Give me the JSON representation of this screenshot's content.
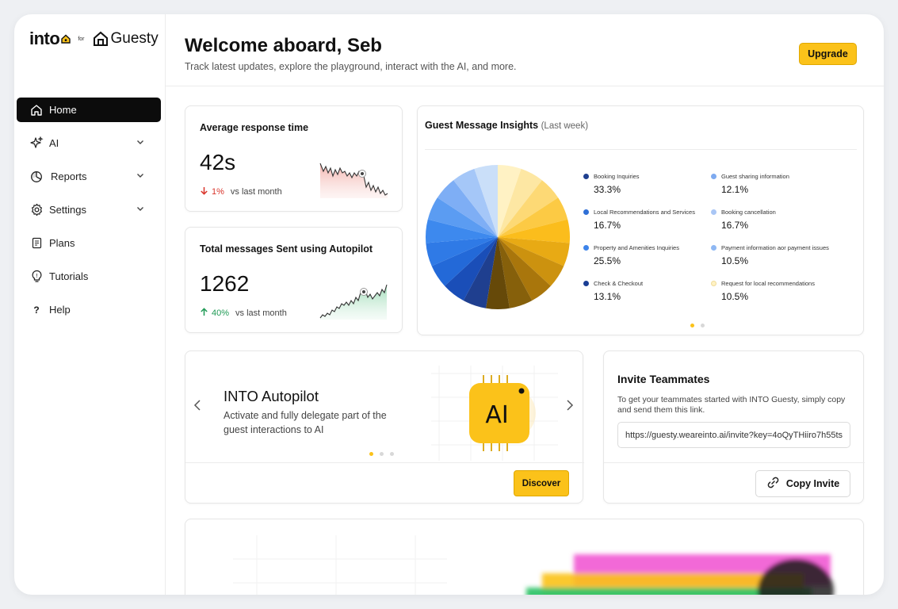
{
  "logo": {
    "brand": "into",
    "for": "for",
    "partner": "Guesty"
  },
  "nav": {
    "items": [
      {
        "label": "Home",
        "icon": "home-icon",
        "active": true,
        "expandable": false
      },
      {
        "label": "AI",
        "icon": "sparkles-icon",
        "active": false,
        "expandable": true
      },
      {
        "label": "Reports",
        "icon": "pie-chart-icon",
        "active": false,
        "expandable": true
      },
      {
        "label": "Settings",
        "icon": "gear-icon",
        "active": false,
        "expandable": true
      },
      {
        "label": "Plans",
        "icon": "clipboard-icon",
        "active": false,
        "expandable": false
      },
      {
        "label": "Tutorials",
        "icon": "lightbulb-icon",
        "active": false,
        "expandable": false
      },
      {
        "label": "Help",
        "icon": "question-icon",
        "active": false,
        "expandable": false
      }
    ]
  },
  "header": {
    "title": "Welcome aboard, Seb",
    "subtitle": "Track latest updates, explore the playground, interact with the AI, and more.",
    "upgrade_label": "Upgrade"
  },
  "stats": {
    "response": {
      "title": "Average response time",
      "value": "42s",
      "delta": "1%",
      "delta_text": "vs last month",
      "trend": "down"
    },
    "messages": {
      "title": "Total messages Sent using Autopilot",
      "value": "1262",
      "delta": "40%",
      "delta_text": "vs last month",
      "trend": "up"
    }
  },
  "insights": {
    "title": "Guest Message Insights",
    "period": "(Last week)",
    "legend": [
      {
        "label": "Booking Inquiries",
        "value": "33.3%",
        "color": "#1f3f8f"
      },
      {
        "label": "Guest sharing information",
        "value": "12.1%",
        "color": "#7eaaf0"
      },
      {
        "label": "Local Recommendations and Services",
        "value": "16.7%",
        "color": "#2f6fd6"
      },
      {
        "label": "Booking cancellation",
        "value": "16.7%",
        "color": "#a9c6f5"
      },
      {
        "label": "Property and Amenities Inquiries",
        "value": "25.5%",
        "color": "#3d84ea"
      },
      {
        "label": "Payment information aor payment issues",
        "value": "10.5%",
        "color": "#8fb8f3"
      },
      {
        "label": "Check & Checkout",
        "value": "13.1%",
        "color": "#1a3e94"
      },
      {
        "label": "Request for local recommendations",
        "value": "10.5%",
        "color": "#fff2c4"
      }
    ]
  },
  "chart_data": {
    "type": "pie",
    "title": "Guest Message Insights",
    "categories": [
      "Booking Inquiries",
      "Guest sharing information",
      "Local Recommendations and Services",
      "Booking cancellation",
      "Property and Amenities Inquiries",
      "Payment information aor payment issues",
      "Check & Checkout",
      "Request for local recommendations"
    ],
    "values": [
      33.3,
      12.1,
      16.7,
      16.7,
      25.5,
      10.5,
      13.1,
      10.5
    ],
    "slice_colors": [
      "#fff2c4",
      "#fde7a3",
      "#fdd975",
      "#fcca44",
      "#fbbd1c",
      "#e8aa14",
      "#cc920f",
      "#a9760c",
      "#86600b",
      "#664909",
      "#1f3f8f",
      "#1a4eb8",
      "#2369d8",
      "#2f7ae6",
      "#3d89ee",
      "#5b9cf2",
      "#7eaef5",
      "#a5c7f8",
      "#cadff9"
    ]
  },
  "autopilot": {
    "title": "INTO Autopilot",
    "description": "Activate and fully delegate part of the guest interactions to AI",
    "chip_label": "AI",
    "discover_label": "Discover"
  },
  "invite": {
    "title": "Invite Teammates",
    "description": "To get your teammates started with INTO Guesty, simply copy and send them this link.",
    "link": "https://guesty.weareinto.ai/invite?key=4oQyTHiiro7h55ts",
    "copy_label": "Copy Invite"
  }
}
